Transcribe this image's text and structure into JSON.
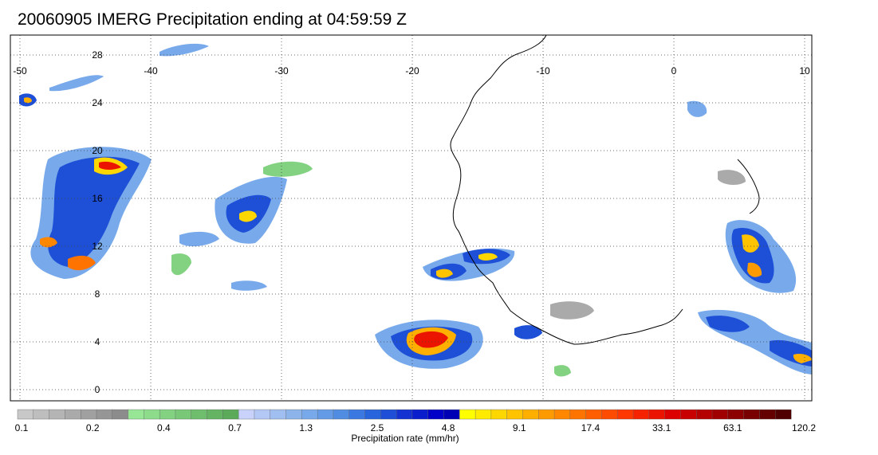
{
  "title": "20060905 IMERG Precipitation ending at 04:59:59 Z",
  "map": {
    "lon_range": [
      -50,
      10
    ],
    "lat_range": [
      0,
      30
    ],
    "lon_ticks": [
      "-50",
      "-40",
      "-30",
      "-20",
      "-10",
      "0",
      "10"
    ],
    "lat_ticks": [
      "28",
      "24",
      "20",
      "16",
      "12",
      "8",
      "4",
      "0"
    ],
    "gridlines": true
  },
  "colorbar": {
    "label": "Precipitation rate (mm/hr)",
    "tick_labels": [
      "0.1",
      "0.2",
      "0.4",
      "0.7",
      "1.3",
      "2.5",
      "4.8",
      "9.1",
      "17.4",
      "33.1",
      "63.1",
      "120.2"
    ],
    "colors": [
      "#c8c8c8",
      "#bebebe",
      "#b4b4b4",
      "#aaaaaa",
      "#a0a0a0",
      "#969696",
      "#8c8c8c",
      "#96e696",
      "#8cdc8c",
      "#82d282",
      "#78c878",
      "#6ebe6e",
      "#64b464",
      "#5aaa5a",
      "#c8d2fa",
      "#b4c8f5",
      "#a0bef0",
      "#8cb4eb",
      "#78aaeb",
      "#649be6",
      "#508ce1",
      "#3c78e1",
      "#2864dc",
      "#1e50d7",
      "#1432d2",
      "#0a1ecd",
      "#0000c8",
      "#0000b4",
      "#ffff00",
      "#ffeb00",
      "#ffd700",
      "#ffc300",
      "#ffaf00",
      "#ff9b00",
      "#ff8700",
      "#ff7300",
      "#ff5f00",
      "#ff4b00",
      "#ff3700",
      "#f52300",
      "#eb1400",
      "#dc0000",
      "#c80000",
      "#b40000",
      "#a00000",
      "#8c0000",
      "#780000",
      "#640000",
      "#500000"
    ]
  }
}
